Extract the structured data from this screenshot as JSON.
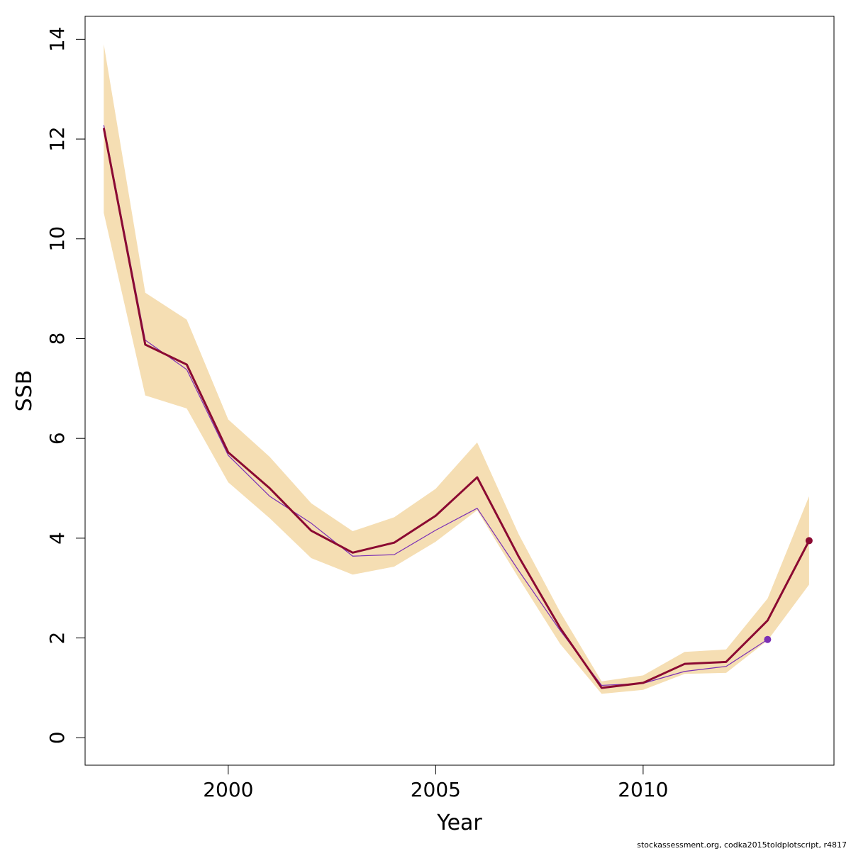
{
  "chart_data": {
    "type": "line",
    "xlabel": "Year",
    "ylabel": "SSB",
    "xlim": [
      1996.55,
      2014.6
    ],
    "ylim": [
      -0.55,
      14.46
    ],
    "x_ticks": [
      2000,
      2005,
      2010
    ],
    "y_ticks": [
      0,
      2,
      4,
      6,
      8,
      10,
      12,
      14
    ],
    "grid": false,
    "x": [
      1997,
      1998,
      1999,
      2000,
      2001,
      2002,
      2003,
      2004,
      2005,
      2006,
      2007,
      2008,
      2009,
      2010,
      2011,
      2012,
      2013,
      2014
    ],
    "series": [
      {
        "role": "main",
        "color": "#8b0a32",
        "values": [
          12.22,
          7.88,
          7.48,
          5.72,
          5.0,
          4.15,
          3.71,
          3.91,
          4.45,
          5.22,
          3.63,
          2.2,
          1.0,
          1.1,
          1.48,
          1.52,
          2.35,
          3.95
        ],
        "lower": [
          10.52,
          6.86,
          6.6,
          5.12,
          4.4,
          3.6,
          3.27,
          3.43,
          3.93,
          4.56,
          3.2,
          1.88,
          0.88,
          0.96,
          1.28,
          1.3,
          1.95,
          3.07
        ],
        "upper": [
          13.9,
          8.92,
          8.38,
          6.38,
          5.63,
          4.7,
          4.14,
          4.42,
          4.99,
          5.92,
          4.08,
          2.52,
          1.13,
          1.25,
          1.72,
          1.77,
          2.79,
          4.84
        ],
        "endpoint": {
          "x": 2014,
          "y": 3.95
        }
      },
      {
        "role": "comparison",
        "color": "#7b2fb5",
        "x": [
          1997,
          1998,
          1999,
          2000,
          2001,
          2002,
          2003,
          2004,
          2005,
          2006,
          2007,
          2008,
          2009,
          2010,
          2011,
          2012,
          2013
        ],
        "values": [
          12.28,
          7.97,
          7.38,
          5.66,
          4.84,
          4.3,
          3.64,
          3.67,
          4.16,
          4.6,
          3.35,
          2.15,
          1.05,
          1.09,
          1.33,
          1.43,
          1.97
        ],
        "endpoint": {
          "x": 2013,
          "y": 1.97
        }
      }
    ],
    "band_color": "#f5deb3"
  },
  "footnote": "stockassessment.org, codka2015toldplotscript, r4817"
}
